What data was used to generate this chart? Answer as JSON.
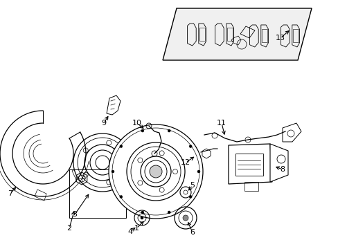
{
  "bg_color": "#ffffff",
  "fig_width": 4.89,
  "fig_height": 3.6,
  "dpi": 100,
  "label_positions": {
    "1": [
      1.88,
      2.88,
      1.98,
      2.72
    ],
    "2": [
      0.62,
      2.38,
      0.82,
      2.52
    ],
    "3": [
      0.72,
      2.18,
      0.98,
      2.3
    ],
    "4": [
      2.08,
      2.88,
      2.04,
      2.74
    ],
    "5": [
      2.52,
      2.42,
      2.48,
      2.52
    ],
    "6": [
      2.52,
      2.95,
      2.5,
      2.8
    ],
    "7": [
      0.12,
      2.12,
      0.25,
      2.05
    ],
    "8": [
      3.72,
      2.22,
      3.55,
      2.28
    ],
    "9": [
      1.62,
      1.45,
      1.6,
      1.58
    ],
    "10": [
      2.08,
      1.68,
      2.18,
      1.78
    ],
    "11": [
      3.05,
      1.68,
      3.0,
      1.82
    ],
    "12": [
      2.68,
      1.98,
      2.82,
      2.02
    ],
    "13": [
      3.72,
      0.52,
      3.65,
      0.72
    ]
  }
}
